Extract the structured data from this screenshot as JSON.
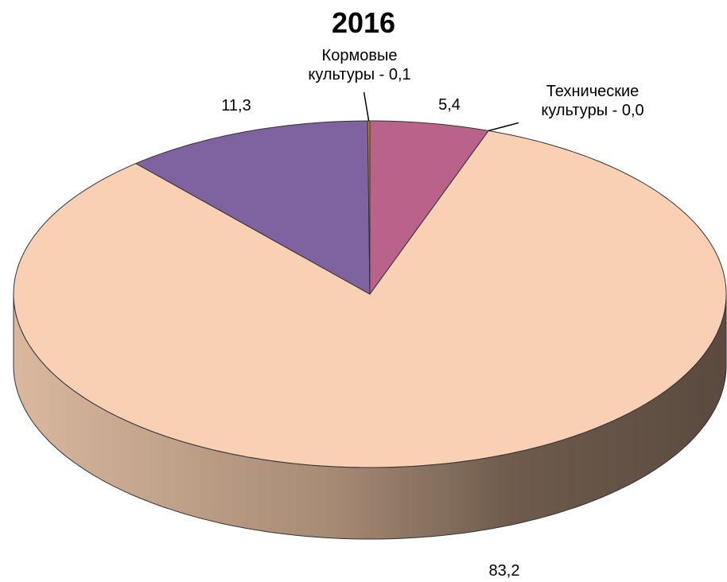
{
  "chart_data": {
    "type": "pie",
    "title": "2016",
    "values": [
      5.4,
      0.0,
      83.2,
      11.3,
      0.1
    ],
    "value_labels": [
      "5,4",
      "Технические культуры - 0,0",
      "83,2",
      "11,3",
      "Кормовые культуры - 0,1"
    ],
    "colors": [
      "#b9638a",
      "#8aa05a",
      "#f9d0b4",
      "#7f62a0",
      "#c08a10"
    ],
    "start_angle": -90,
    "three_d": true
  }
}
